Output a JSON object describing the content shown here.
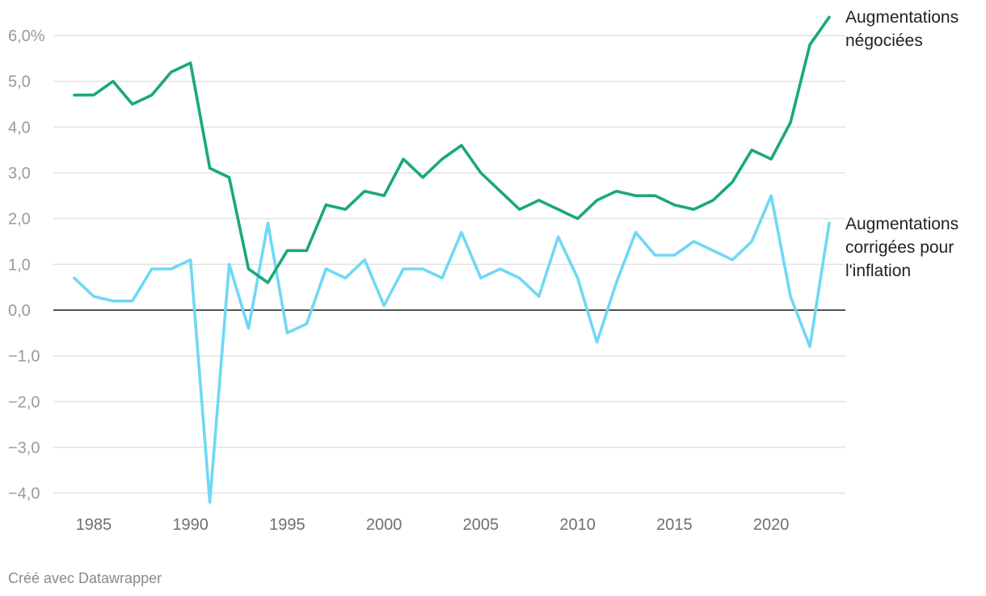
{
  "chart_data": {
    "type": "line",
    "x": [
      1984,
      1985,
      1986,
      1987,
      1988,
      1989,
      1990,
      1991,
      1992,
      1993,
      1994,
      1995,
      1996,
      1997,
      1998,
      1999,
      2000,
      2001,
      2002,
      2003,
      2004,
      2005,
      2006,
      2007,
      2008,
      2009,
      2010,
      2011,
      2012,
      2013,
      2014,
      2015,
      2016,
      2017,
      2018,
      2019,
      2020,
      2021,
      2022,
      2023
    ],
    "series": [
      {
        "name": "Augmentations négociées",
        "label_lines": [
          "Augmentations",
          "négociées"
        ],
        "color": "#1aa87a",
        "values": [
          4.7,
          4.7,
          5.0,
          4.5,
          4.7,
          5.2,
          5.4,
          3.1,
          2.9,
          0.9,
          0.6,
          1.3,
          1.3,
          2.3,
          2.2,
          2.6,
          2.5,
          3.3,
          2.9,
          3.3,
          3.6,
          3.0,
          2.6,
          2.2,
          2.4,
          2.2,
          2.0,
          2.4,
          2.6,
          2.5,
          2.5,
          2.3,
          2.2,
          2.4,
          2.8,
          3.5,
          3.3,
          4.1,
          5.8,
          6.4
        ]
      },
      {
        "name": "Augmentations corrigées pour l'inflation",
        "label_lines": [
          "Augmentations",
          "corrigées pour",
          "l'inflation"
        ],
        "color": "#6fd8f5",
        "values": [
          0.7,
          0.3,
          0.2,
          0.2,
          0.9,
          0.9,
          1.1,
          -4.2,
          1.0,
          -0.4,
          1.9,
          -0.5,
          -0.3,
          0.9,
          0.7,
          1.1,
          0.1,
          0.9,
          0.9,
          0.7,
          1.7,
          0.7,
          0.9,
          0.7,
          0.3,
          1.6,
          0.7,
          -0.7,
          0.6,
          1.7,
          1.2,
          1.2,
          1.5,
          1.3,
          1.1,
          1.5,
          2.5,
          0.3,
          -0.8,
          1.9
        ]
      }
    ],
    "y_ticks": [
      {
        "value": 6,
        "label": "6,0%"
      },
      {
        "value": 5,
        "label": "5,0"
      },
      {
        "value": 4,
        "label": "4,0"
      },
      {
        "value": 3,
        "label": "3,0"
      },
      {
        "value": 2,
        "label": "2,0"
      },
      {
        "value": 1,
        "label": "1,0"
      },
      {
        "value": 0,
        "label": "0,0"
      },
      {
        "value": -1,
        "label": "−1,0"
      },
      {
        "value": -2,
        "label": "−2,0"
      },
      {
        "value": -3,
        "label": "−3,0"
      },
      {
        "value": -4,
        "label": "−4,0"
      }
    ],
    "x_ticks": [
      1985,
      1990,
      1995,
      2000,
      2005,
      2010,
      2015,
      2020
    ],
    "xlim": [
      1984,
      2023
    ],
    "ylim": [
      -4.2,
      6.4
    ],
    "grid": true,
    "legend": "direct labels at right"
  },
  "footer": {
    "credit": "Créé avec Datawrapper"
  }
}
